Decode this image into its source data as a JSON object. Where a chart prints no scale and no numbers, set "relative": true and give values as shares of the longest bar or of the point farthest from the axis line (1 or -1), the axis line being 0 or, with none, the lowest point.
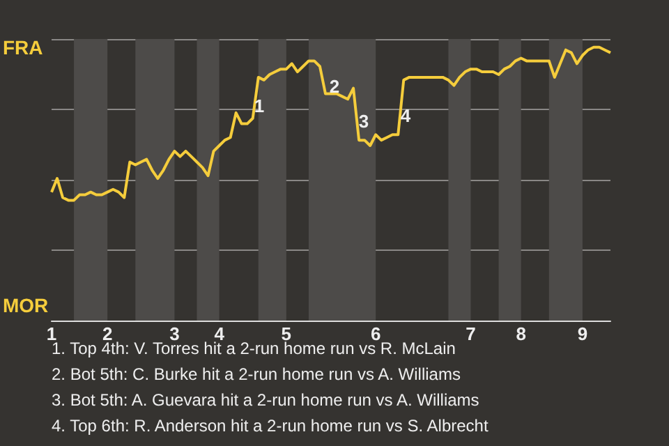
{
  "chart_data": {
    "type": "line",
    "relative": true,
    "categories": [
      "1",
      null,
      null,
      null,
      null,
      null,
      null,
      null,
      null,
      null,
      "2",
      null,
      null,
      null,
      null,
      null,
      null,
      null,
      null,
      null,
      null,
      null,
      "3",
      null,
      null,
      null,
      null,
      null,
      null,
      null,
      "4",
      null,
      null,
      null,
      null,
      null,
      null,
      null,
      null,
      null,
      null,
      null,
      "5",
      null,
      null,
      null,
      null,
      null,
      null,
      null,
      null,
      null,
      null,
      null,
      null,
      null,
      null,
      null,
      "6",
      null,
      null,
      null,
      null,
      null,
      null,
      null,
      null,
      null,
      null,
      null,
      null,
      null,
      null,
      null,
      null,
      "7",
      null,
      null,
      null,
      null,
      null,
      null,
      null,
      null,
      "8",
      null,
      null,
      null,
      null,
      null,
      null,
      null,
      null,
      null,
      null,
      "9",
      null,
      null,
      null,
      null,
      null
    ],
    "grid": "y",
    "marker": "none",
    "line_style": "solid",
    "series": [
      {
        "color": "#f5cd3c",
        "values": [
          0.47,
          0.52,
          0.45,
          0.44,
          0.44,
          0.46,
          0.46,
          0.47,
          0.46,
          0.46,
          0.47,
          0.48,
          0.47,
          0.45,
          0.58,
          0.57,
          0.58,
          0.59,
          0.55,
          0.52,
          0.55,
          0.59,
          0.62,
          0.6,
          0.62,
          0.6,
          0.58,
          0.56,
          0.53,
          0.62,
          0.64,
          0.66,
          0.67,
          0.76,
          0.72,
          0.72,
          0.74,
          0.89,
          0.88,
          0.9,
          0.91,
          0.92,
          0.92,
          0.94,
          0.91,
          0.93,
          0.95,
          0.95,
          0.93,
          0.83,
          0.83,
          0.83,
          0.82,
          0.81,
          0.85,
          0.66,
          0.66,
          0.64,
          0.68,
          0.66,
          0.67,
          0.68,
          0.68,
          0.88,
          0.89,
          0.89,
          0.89,
          0.89,
          0.89,
          0.89,
          0.89,
          0.88,
          0.86,
          0.89,
          0.91,
          0.92,
          0.92,
          0.91,
          0.91,
          0.91,
          0.9,
          0.92,
          0.93,
          0.95,
          0.96,
          0.95,
          0.95,
          0.95,
          0.95,
          0.95,
          0.89,
          0.94,
          0.99,
          0.98,
          0.94,
          0.97,
          0.99,
          1.0,
          1.0,
          0.99,
          0.98
        ]
      }
    ],
    "annotations": [
      "FRA",
      "MOR",
      "1",
      "2",
      "3",
      "4",
      "1. Top 4th: V. Torres hit a 2-run home run vs R. McLain",
      "2. Bot 5th: C. Burke hit a 2-run home run vs A. Williams",
      "3. Bot 5th: A. Guevara hit a 2-run home run vs A. Williams",
      "4. Top 6th: R. Anderson hit a 2-run home run vs S. Albrecht"
    ]
  }
}
